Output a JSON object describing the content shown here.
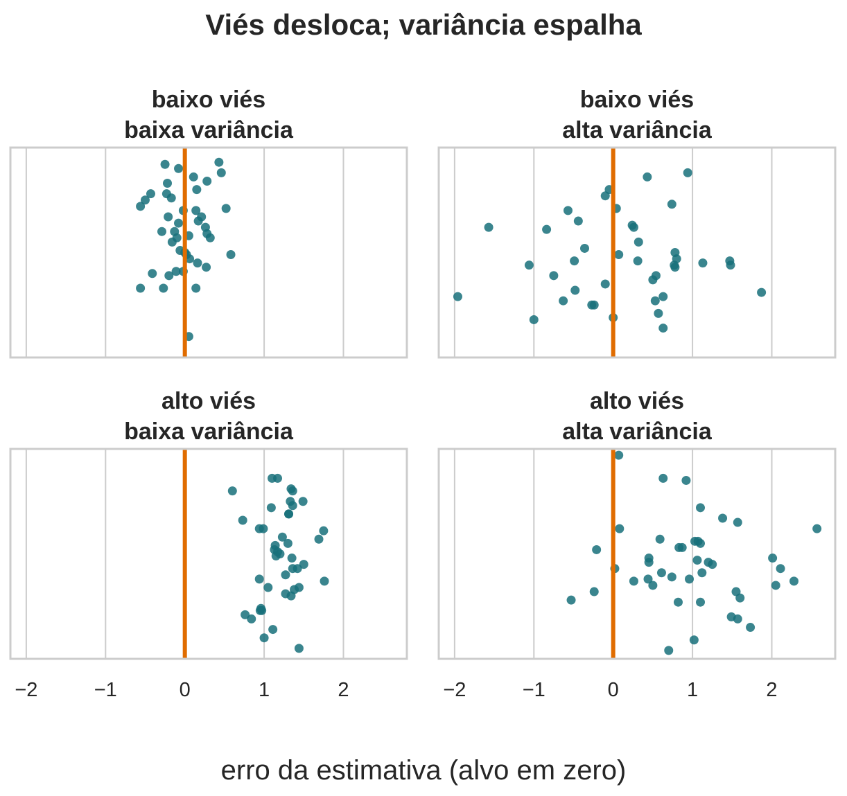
{
  "chart_data": {
    "type": "scatter",
    "title": "Viés desloca; variância espalha",
    "xlabel": "erro da estimativa (alvo em zero)",
    "xlim": [
      -2.2,
      2.8
    ],
    "xticks": [
      -2,
      -1,
      0,
      1,
      2
    ],
    "xtick_labels": [
      "−2",
      "−1",
      "0",
      "1",
      "2"
    ],
    "grid": true,
    "reference_line_x": 0,
    "colors": {
      "points": "#17707a",
      "reference": "#e06c00",
      "grid": "#cccccc",
      "frame": "#cccccc"
    },
    "panels": [
      {
        "title_line1": "baixo viés",
        "title_line2": "baixa variância",
        "x": [
          0.43,
          -0.25,
          -0.08,
          0.46,
          0.11,
          0.28,
          -0.22,
          0.15,
          -0.43,
          -0.23,
          -0.17,
          -0.5,
          -0.56,
          -0.02,
          0.14,
          0.52,
          -0.21,
          0.21,
          0.17,
          -0.08,
          0.26,
          -0.29,
          -0.13,
          0.28,
          -0.1,
          0.05,
          0.32,
          -0.16,
          -0.06,
          0.58,
          0.0,
          0.02,
          0.06,
          0.16,
          0.27,
          -0.41,
          -0.02,
          -0.11,
          -0.2,
          0.14,
          -0.56,
          -0.27,
          0.05
        ],
        "y": [
          0.93,
          0.92,
          0.9,
          0.88,
          0.86,
          0.84,
          0.83,
          0.8,
          0.78,
          0.78,
          0.76,
          0.75,
          0.72,
          0.7,
          0.7,
          0.71,
          0.67,
          0.67,
          0.65,
          0.64,
          0.62,
          0.6,
          0.6,
          0.59,
          0.57,
          0.58,
          0.57,
          0.55,
          0.51,
          0.49,
          0.5,
          0.49,
          0.47,
          0.45,
          0.43,
          0.4,
          0.41,
          0.41,
          0.39,
          0.33,
          0.33,
          0.33,
          0.1
        ]
      },
      {
        "title_line1": "baixo viés",
        "title_line2": "alta variância",
        "x": [
          0.94,
          0.43,
          -0.05,
          -0.1,
          0.74,
          0.04,
          -0.57,
          -0.44,
          0.24,
          0.26,
          -1.57,
          -0.84,
          0.32,
          -0.36,
          0.07,
          0.78,
          0.8,
          0.31,
          -0.49,
          0.77,
          1.47,
          1.48,
          1.13,
          -1.06,
          0.78,
          -0.75,
          0.54,
          -0.1,
          0.5,
          -0.48,
          0.63,
          -1.96,
          1.87,
          0.53,
          -0.63,
          -0.27,
          -0.24,
          0.57,
          -1.0,
          0.0,
          0.63
        ],
        "y": [
          0.88,
          0.86,
          0.8,
          0.77,
          0.73,
          0.71,
          0.7,
          0.65,
          0.63,
          0.62,
          0.62,
          0.61,
          0.55,
          0.52,
          0.49,
          0.5,
          0.47,
          0.46,
          0.46,
          0.44,
          0.46,
          0.44,
          0.45,
          0.44,
          0.43,
          0.39,
          0.39,
          0.35,
          0.37,
          0.32,
          0.29,
          0.29,
          0.31,
          0.27,
          0.27,
          0.25,
          0.25,
          0.21,
          0.18,
          0.19,
          0.14
        ]
      },
      {
        "title_line1": "alto viés",
        "title_line2": "baixa variância",
        "x": [
          1.1,
          1.17,
          1.34,
          1.36,
          0.6,
          1.49,
          1.33,
          1.36,
          1.09,
          1.31,
          0.73,
          1.31,
          0.94,
          0.99,
          1.75,
          1.23,
          1.69,
          1.3,
          1.14,
          1.13,
          1.2,
          1.15,
          1.17,
          1.35,
          1.36,
          1.42,
          1.5,
          1.27,
          0.94,
          1.76,
          1.05,
          1.44,
          1.27,
          1.38,
          1.34,
          0.96,
          0.97,
          0.76,
          0.84,
          0.95,
          1.11,
          1.0,
          1.44
        ],
        "y": [
          0.86,
          0.86,
          0.81,
          0.8,
          0.8,
          0.75,
          0.75,
          0.73,
          0.72,
          0.69,
          0.66,
          0.69,
          0.62,
          0.62,
          0.61,
          0.58,
          0.57,
          0.55,
          0.54,
          0.52,
          0.5,
          0.49,
          0.51,
          0.48,
          0.43,
          0.43,
          0.45,
          0.4,
          0.38,
          0.37,
          0.34,
          0.34,
          0.31,
          0.33,
          0.3,
          0.24,
          0.23,
          0.21,
          0.19,
          0.23,
          0.14,
          0.1,
          0.05
        ]
      },
      {
        "title_line1": "alto viés",
        "title_line2": "alta variância",
        "x": [
          0.07,
          0.63,
          0.92,
          1.1,
          1.38,
          1.57,
          2.57,
          0.08,
          0.59,
          1.03,
          1.07,
          1.1,
          0.87,
          0.83,
          -0.21,
          2.01,
          0.45,
          0.45,
          1.06,
          1.2,
          1.25,
          2.11,
          0.02,
          0.61,
          0.74,
          1.12,
          0.44,
          0.96,
          0.26,
          0.5,
          2.28,
          2.05,
          -0.24,
          1.55,
          1.6,
          -0.53,
          0.82,
          1.1,
          1.49,
          1.57,
          1.73,
          1.02,
          0.7
        ],
        "y": [
          0.97,
          0.86,
          0.85,
          0.72,
          0.67,
          0.65,
          0.62,
          0.62,
          0.57,
          0.56,
          0.56,
          0.55,
          0.53,
          0.53,
          0.52,
          0.48,
          0.48,
          0.46,
          0.47,
          0.46,
          0.45,
          0.43,
          0.43,
          0.41,
          0.39,
          0.41,
          0.38,
          0.38,
          0.37,
          0.35,
          0.37,
          0.35,
          0.32,
          0.32,
          0.29,
          0.28,
          0.27,
          0.27,
          0.2,
          0.19,
          0.15,
          0.09,
          0.04
        ]
      }
    ]
  }
}
